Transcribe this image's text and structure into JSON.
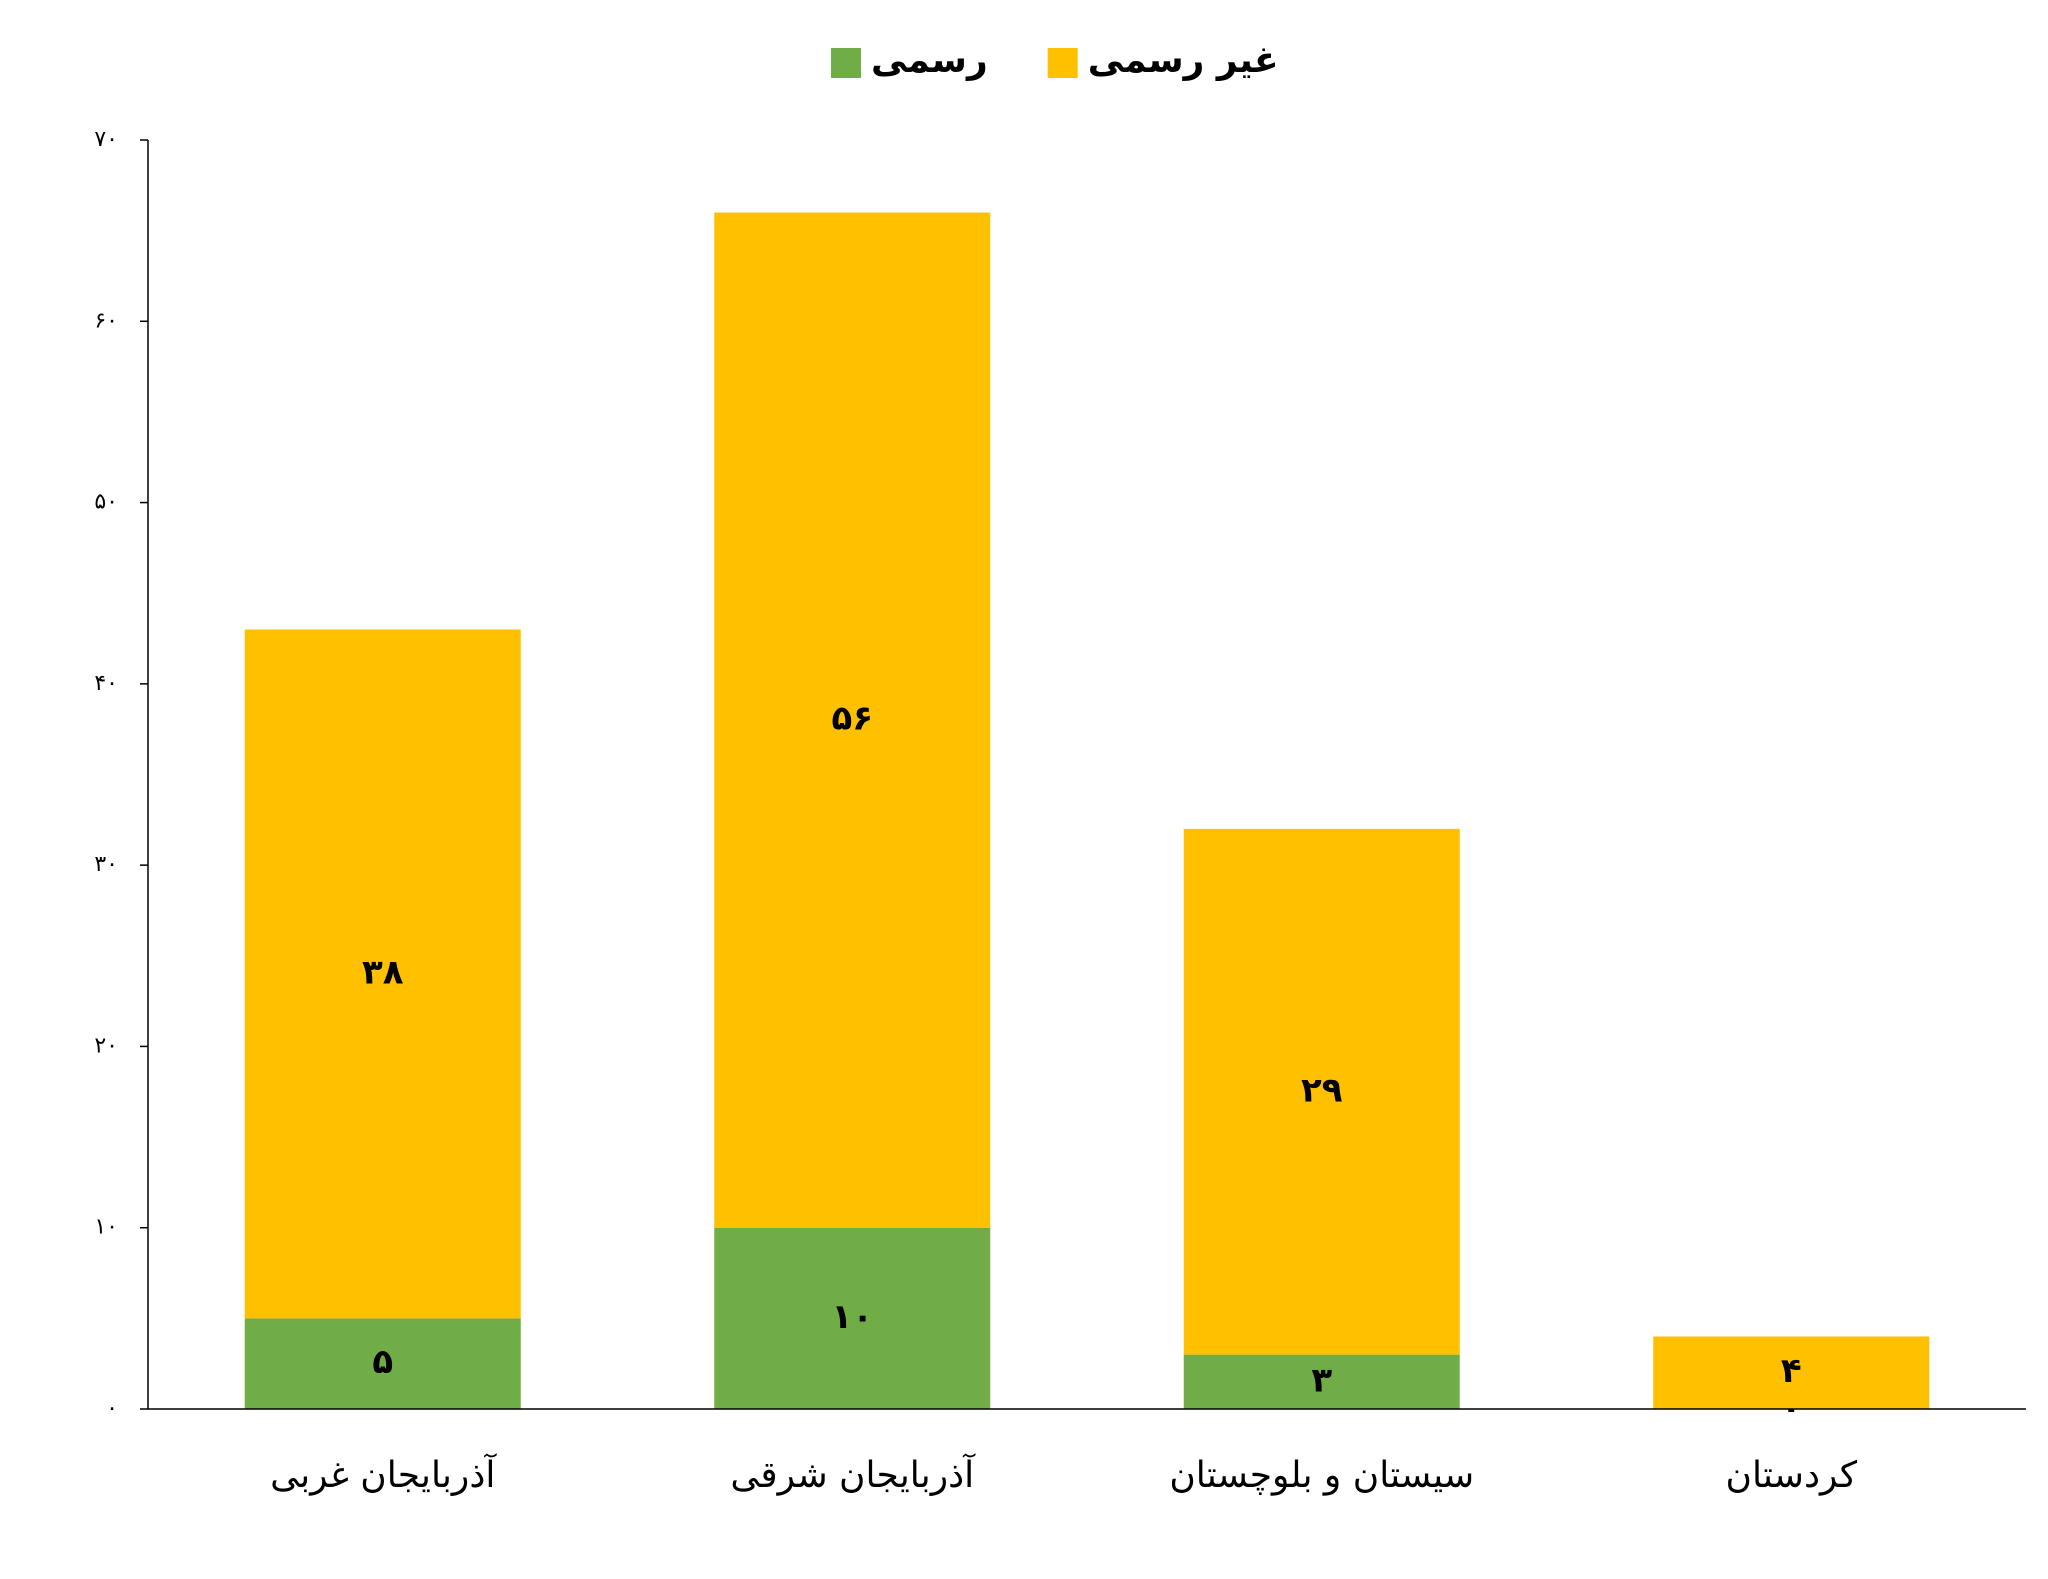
{
  "chart_data": {
    "type": "stacked_bar",
    "categories": [
      "آذربایجان غربی",
      "آذربایجان شرقی",
      "سیستان و بلوچستان",
      "کردستان"
    ],
    "series": [
      {
        "name": "رسمی",
        "color": "#70ad47",
        "values": [
          5,
          10,
          3,
          0
        ],
        "value_labels": [
          "۵",
          "۱۰",
          "۳",
          "۰"
        ]
      },
      {
        "name": "غیر رسمی",
        "color": "#ffc000",
        "values": [
          38,
          56,
          29,
          4
        ],
        "value_labels": [
          "۳۸",
          "۵۶",
          "۲۹",
          "۴"
        ]
      }
    ],
    "ylim": [
      0,
      70
    ],
    "yticks": [
      {
        "value": 0,
        "label": "۰"
      },
      {
        "value": 10,
        "label": "۱۰"
      },
      {
        "value": 20,
        "label": "۲۰"
      },
      {
        "value": 30,
        "label": "۳۰"
      },
      {
        "value": 40,
        "label": "۴۰"
      },
      {
        "value": 50,
        "label": "۵۰"
      },
      {
        "value": 60,
        "label": "۶۰"
      },
      {
        "value": 70,
        "label": "۷۰"
      }
    ],
    "grid": false,
    "legend": "top"
  }
}
